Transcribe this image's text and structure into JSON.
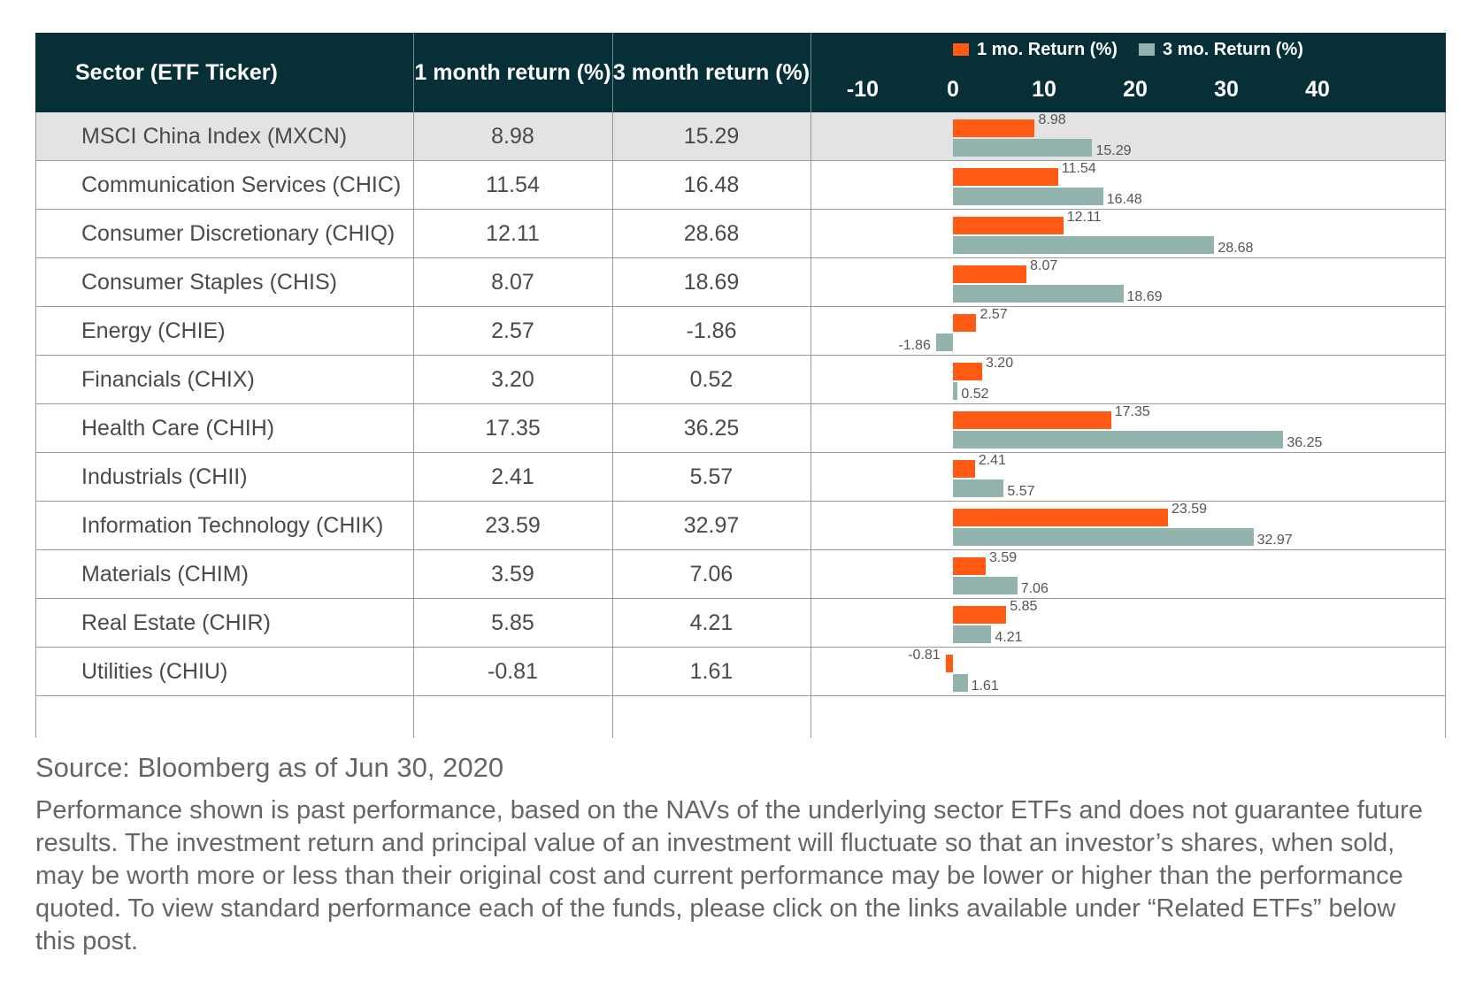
{
  "table": {
    "headers": [
      "Sector (ETF Ticker)",
      "1 month return  (%)",
      "3 month return (%)"
    ]
  },
  "colors": {
    "header_bg": "#062f38",
    "one_month": "#ff5b14",
    "three_month": "#93b3af",
    "highlight_row": "#e3e3e3"
  },
  "chart_data": {
    "type": "bar",
    "orientation": "horizontal",
    "categories": [
      "MSCI China Index (MXCN)",
      "Communication Services (CHIC)",
      "Consumer Discretionary (CHIQ)",
      "Consumer Staples (CHIS)",
      "Energy (CHIE)",
      "Financials (CHIX)",
      "Health Care (CHIH)",
      "Industrials (CHII)",
      "Information Technology (CHIK)",
      "Materials (CHIM)",
      "Real Estate (CHIR)",
      "Utilities (CHIU)"
    ],
    "series": [
      {
        "name": "1 mo. Return (%)",
        "values": [
          8.98,
          11.54,
          12.11,
          8.07,
          2.57,
          3.2,
          17.35,
          2.41,
          23.59,
          3.59,
          5.85,
          -0.81
        ],
        "labels": [
          "8.98",
          "11.54",
          "12.11",
          "8.07",
          "2.57",
          "3.20",
          "17.35",
          "2.41",
          "23.59",
          "3.59",
          "5.85",
          "-0.81"
        ]
      },
      {
        "name": "3 mo. Return (%)",
        "values": [
          15.29,
          16.48,
          28.68,
          18.69,
          -1.86,
          0.52,
          36.25,
          5.57,
          32.97,
          7.06,
          4.21,
          1.61
        ],
        "labels": [
          "15.29",
          "16.48",
          "28.68",
          "18.69",
          "-1.86",
          "0.52",
          "36.25",
          "5.57",
          "32.97",
          "7.06",
          "4.21",
          "1.61"
        ]
      }
    ],
    "xlim": [
      -10,
      40
    ],
    "xticks": [
      "-10",
      "0",
      "10",
      "20",
      "30",
      "40"
    ],
    "legend_position": "top",
    "highlighted_category": "MSCI China Index (MXCN)"
  },
  "footer": {
    "source": "Source: Bloomberg as of Jun 30, 2020",
    "disclaimer": "Performance shown is past performance, based on the NAVs of the underlying sector ETFs and does not guarantee future results. The investment return and principal value of an investment will fluctuate so that an investor’s shares, when sold, may be worth more or less than their original cost and current performance may be lower or higher than the performance quoted. To view standard performance each of the funds, please click on the links available under “Related ETFs” below this post."
  }
}
